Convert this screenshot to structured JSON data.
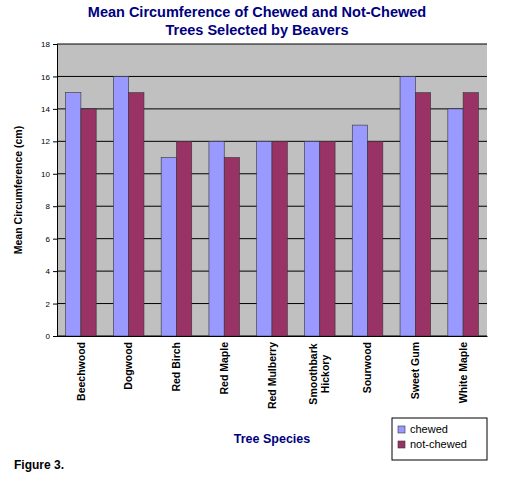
{
  "chart_data": {
    "type": "bar",
    "title": "Mean Circumference of Chewed and Not-Chewed\nTrees Selected by Beavers",
    "x_label": "Tree Species",
    "y_label": "Mean Circumference (cm)",
    "annotations": [
      "Figure 3."
    ],
    "categories": [
      "Beechwood",
      "Dogwood",
      "Red Birch",
      "Red Maple",
      "Red Mulberry",
      "Smoothbark Hickory",
      "Sourwood",
      "Sweet Gum",
      "White Maple"
    ],
    "series": [
      {
        "name": "chewed",
        "color": "#9999ff",
        "values": [
          15,
          16,
          11,
          12,
          12,
          12,
          13,
          16,
          14
        ]
      },
      {
        "name": "not-chewed",
        "color": "#993366",
        "values": [
          14,
          15,
          12,
          11,
          12,
          12,
          12,
          15,
          15
        ]
      }
    ],
    "ylim": [
      0,
      18
    ],
    "yticks": [
      0,
      2,
      4,
      6,
      8,
      10,
      12,
      14,
      16,
      18
    ],
    "grid": true,
    "legend": "bottom-right"
  }
}
